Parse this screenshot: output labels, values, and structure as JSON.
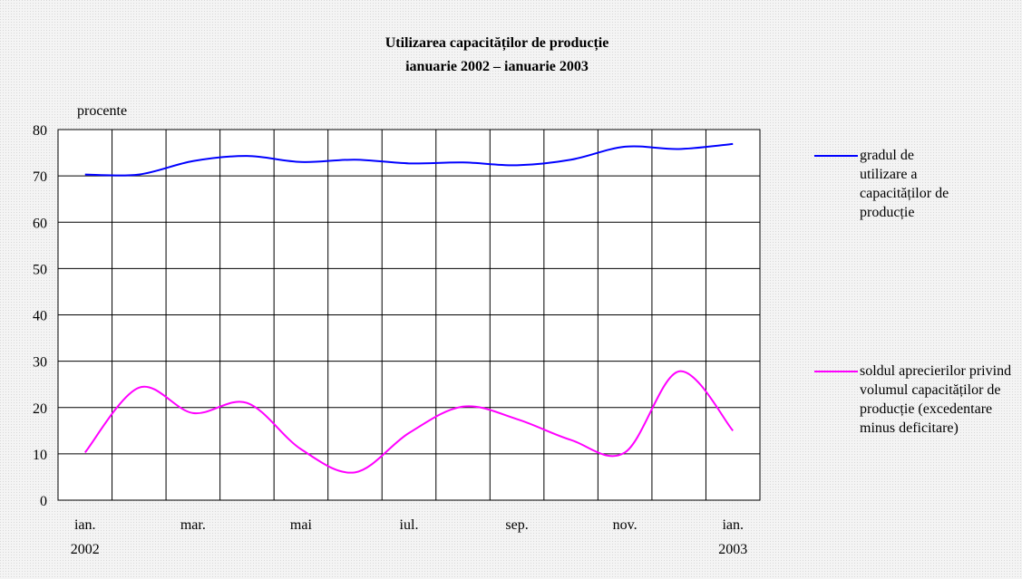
{
  "chart_data": {
    "type": "line",
    "title": "Utilizarea capacităților de producție",
    "subtitle": "ianuarie 2002 – ianuarie 2003",
    "y_label": "procente",
    "categories": [
      [
        "ian.",
        "2002"
      ],
      null,
      [
        "mar."
      ],
      null,
      [
        "mai"
      ],
      null,
      [
        "iul."
      ],
      null,
      [
        "sep."
      ],
      null,
      [
        "nov."
      ],
      null,
      [
        "ian.",
        "2003"
      ]
    ],
    "series": [
      {
        "name": "gradul de utilizare a capacităților de producție",
        "color": "#0000ff",
        "values": [
          70.3,
          70.3,
          73.2,
          74.3,
          73,
          73.5,
          72.7,
          72.9,
          72.3,
          73.5,
          76.3,
          75.8,
          76.9
        ]
      },
      {
        "name": "soldul aprecierilor privind volumul capacităților de producție (excedentare minus deficitare)",
        "color": "#ff00ff",
        "values": [
          10.3,
          24.3,
          18.8,
          21,
          11,
          6,
          14.5,
          20.2,
          17.5,
          13,
          10.3,
          27.8,
          15
        ]
      }
    ],
    "ylim": [
      0,
      80
    ],
    "yticks": [
      0,
      10,
      20,
      30,
      40,
      50,
      60,
      70,
      80
    ],
    "grid": true
  }
}
